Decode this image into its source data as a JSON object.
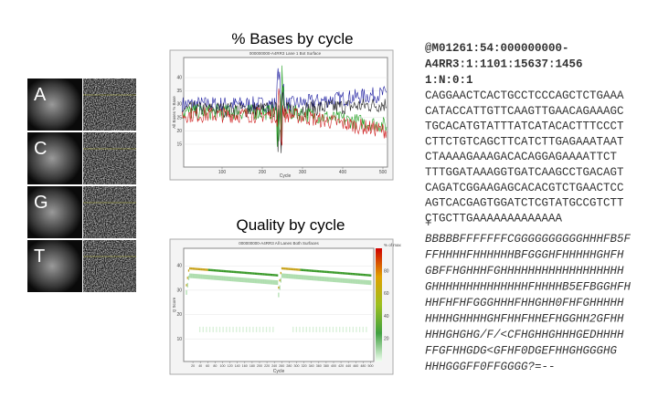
{
  "tiles": [
    {
      "label": "A"
    },
    {
      "label": "C"
    },
    {
      "label": "G"
    },
    {
      "label": "T"
    }
  ],
  "bases_chart": {
    "title": "% Bases by cycle",
    "inner_title": "000000000-A4RR3 Lane 1 Bot Surface",
    "x_label": "Cycle",
    "y_label": "All Bases % Base",
    "xticks": [
      100,
      200,
      300,
      400,
      500
    ],
    "yticks": [
      15,
      20,
      25,
      30,
      35,
      40
    ]
  },
  "quality_chart": {
    "title": "Quality by cycle",
    "inner_title": "000000000-A4RR3 All Lanes Both Surfaces",
    "x_label": "Cycle",
    "y_label": "Q Score",
    "yticks": [
      10,
      20,
      30,
      40
    ],
    "xticks": [
      20,
      40,
      60,
      80,
      100,
      120,
      140,
      160,
      180,
      200,
      220,
      240,
      260,
      280,
      300,
      320,
      340,
      360,
      380,
      400,
      420,
      440,
      460,
      480,
      500
    ],
    "colorbar_label": "% of max",
    "colorbar_ticks": [
      20,
      40,
      60,
      80
    ]
  },
  "fastq": {
    "header": [
      "@M01261:54:000000000-",
      "A4RR3:1:1101:15637:1456",
      "1:N:0:1"
    ],
    "sequence": [
      "CAGGAACTCACTGCCTCCCAGCTCTGAAA",
      "CATACCATTGTTCAAGTTGAACAGAAAGC",
      "TGCACATGTATTTATCATACACTTTCCCT",
      "CTTCTGTCAGCTTCATCTTGAGAAATAAT",
      "CTAAAAGAAAGACACAGGAGAAAATTCT",
      "TTTGGATAAAGGTGATCAAGCCTGACAGT",
      "CAGATCGGAAGAGCACACGTCTGAACTCC",
      "AGTCACGAGTGGATCTCGTATGCCGTCTT",
      "CTGCTTGAAAAAAAAAAAAA"
    ],
    "separator": "+",
    "quality": [
      "BBBBBFFFFFFFCGGGGGGGGGGHHHFB5F",
      "FFHHHHFHHHHHHBFGGGHFHHHHHGHFH",
      "GBFFHGHHHFGHHHHHHHHHHHHHHHHHH",
      "GHHHHHHHHHHHHHHFHHHHB5EFBGGHFH",
      "HHFHFHFGGGHHHFHHGHH0FHFGHHHHH",
      "HHHHGHHHHGHFHHFHHEFHGGHH2GFHH",
      "HHHGHGHG/F/<CFHGHHGHHHGEDHHHH",
      "FFGFHHGDG<GFHF0DGEFHHGHGGGHG",
      "HHHGGGFF0FFGGGG?=--"
    ]
  }
}
